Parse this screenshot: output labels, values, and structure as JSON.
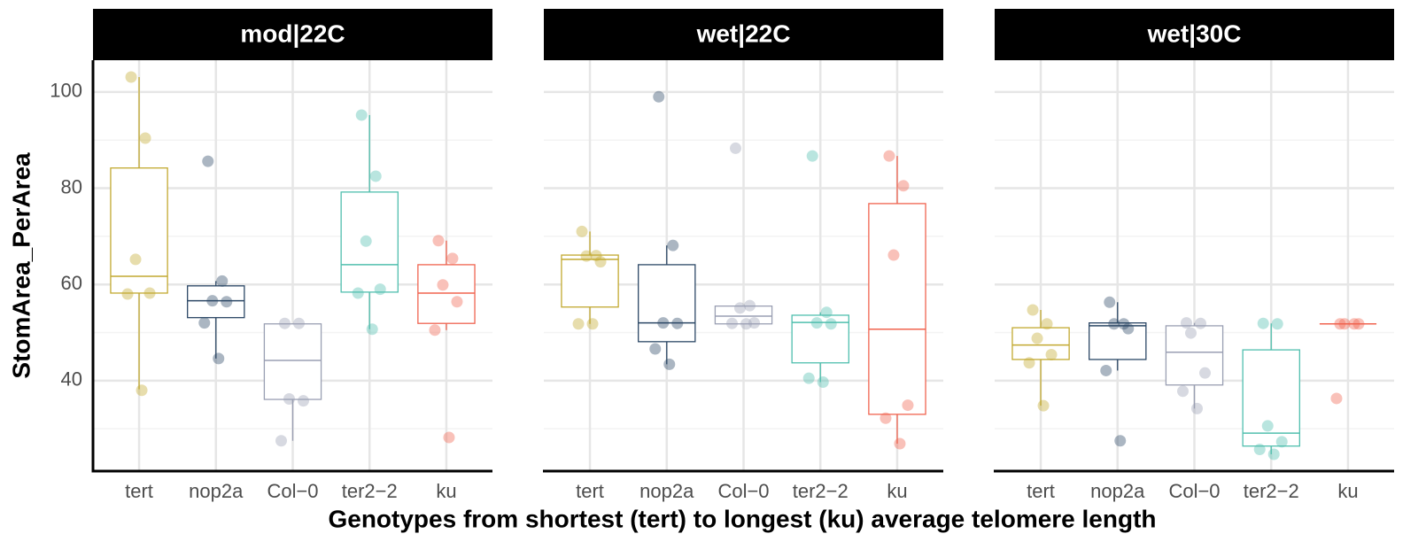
{
  "chart_data": {
    "type": "box",
    "ylabel": "StomArea_PerArea",
    "xlabel": "Genotypes from shortest (tert) to longest (ku) average telomere length",
    "categories": [
      "tert",
      "nop2a",
      "Col−0",
      "ter2−2",
      "ku"
    ],
    "colors": [
      "#c2a930",
      "#2c4866",
      "#9a9fb3",
      "#50bfae",
      "#f0634f"
    ],
    "ylim": [
      21.2,
      106.6
    ],
    "yticks": [
      40,
      60,
      80,
      100
    ],
    "minor_yticks": [
      30,
      50,
      70,
      90
    ],
    "grid": true,
    "facets": [
      {
        "title": "mod|22C",
        "boxes": [
          {
            "min": 38.2,
            "q1": 58.2,
            "median": 61.7,
            "q3": 84.2,
            "max": 103.1
          },
          {
            "min": 44.6,
            "q1": 53.1,
            "median": 56.6,
            "q3": 59.7,
            "max": 60.7
          },
          {
            "min": 27.5,
            "q1": 36.1,
            "median": 44.2,
            "q3": 51.8,
            "max": 51.9
          },
          {
            "min": 50.7,
            "q1": 58.4,
            "median": 64.1,
            "q3": 79.2,
            "max": 95.2
          },
          {
            "min": 50.5,
            "q1": 51.9,
            "median": 58.2,
            "q3": 64.1,
            "max": 69.1
          }
        ],
        "points": [
          [
            103.1,
            90.4,
            65.2,
            58.2,
            58.0,
            38.0
          ],
          [
            85.6,
            60.7,
            56.6,
            56.4,
            52.0,
            44.6
          ],
          [
            51.9,
            51.9,
            36.2,
            35.8,
            27.5
          ],
          [
            95.2,
            82.5,
            69.0,
            59.0,
            58.2,
            50.7
          ],
          [
            69.1,
            65.4,
            59.9,
            56.4,
            50.5,
            28.2
          ]
        ]
      },
      {
        "title": "wet|22C",
        "boxes": [
          {
            "min": 51.8,
            "q1": 55.3,
            "median": 65.2,
            "q3": 66.1,
            "max": 71.0
          },
          {
            "min": 43.4,
            "q1": 48.1,
            "median": 52.0,
            "q3": 64.1,
            "max": 68.1
          },
          {
            "min": 51.8,
            "q1": 51.8,
            "median": 53.4,
            "q3": 55.5,
            "max": 55.6
          },
          {
            "min": 39.7,
            "q1": 43.7,
            "median": 52.1,
            "q3": 53.6,
            "max": 54.2
          },
          {
            "min": 26.9,
            "q1": 33.0,
            "median": 50.7,
            "q3": 76.8,
            "max": 86.7
          }
        ],
        "points": [
          [
            71.0,
            66.0,
            65.9,
            64.7,
            51.8,
            51.8
          ],
          [
            99.0,
            68.1,
            52.0,
            51.9,
            46.6,
            43.4
          ],
          [
            88.3,
            55.6,
            55.1,
            52.0,
            51.9,
            51.8
          ],
          [
            86.7,
            54.2,
            52.0,
            51.8,
            40.5,
            39.7
          ],
          [
            86.7,
            80.5,
            66.1,
            34.9,
            32.2,
            26.9
          ]
        ]
      },
      {
        "title": "wet|30C",
        "boxes": [
          {
            "min": 34.8,
            "q1": 44.4,
            "median": 47.4,
            "q3": 51.0,
            "max": 54.7
          },
          {
            "min": 42.1,
            "q1": 44.4,
            "median": 51.4,
            "q3": 52.0,
            "max": 56.3
          },
          {
            "min": 34.2,
            "q1": 39.1,
            "median": 45.9,
            "q3": 51.4,
            "max": 52.0
          },
          {
            "min": 24.7,
            "q1": 26.4,
            "median": 29.1,
            "q3": 46.4,
            "max": 51.9
          },
          {
            "min": 51.8,
            "q1": 51.8,
            "median": 51.8,
            "q3": 51.8,
            "max": 51.8
          }
        ],
        "points": [
          [
            54.7,
            51.8,
            48.8,
            45.4,
            43.7,
            34.8
          ],
          [
            56.3,
            51.8,
            51.8,
            50.8,
            42.1,
            27.5
          ],
          [
            52.0,
            51.9,
            49.9,
            41.6,
            37.8,
            34.2
          ],
          [
            51.9,
            51.8,
            30.6,
            27.3,
            25.7,
            24.7
          ],
          [
            51.8,
            51.8,
            51.8,
            51.8,
            36.3
          ]
        ]
      }
    ]
  }
}
